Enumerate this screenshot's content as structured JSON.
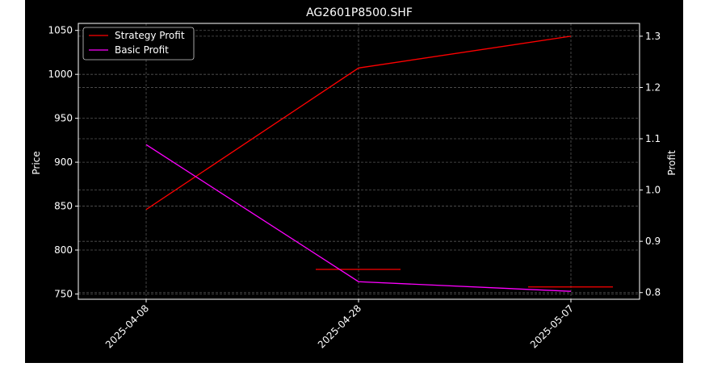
{
  "chart_data": {
    "type": "line",
    "title": "AG2601P8500.SHF",
    "ylabel": "Price",
    "y2label": "Profit",
    "x_ticks": [
      "2025-04-08",
      "2025-04-28",
      "2025-05-07"
    ],
    "ylim": [
      744,
      1058
    ],
    "y_ticks": [
      750,
      800,
      850,
      900,
      950,
      1000,
      1050
    ],
    "y2lim": [
      0.787,
      1.325
    ],
    "y2_ticks": [
      0.8,
      0.9,
      1.0,
      1.1,
      1.2,
      1.3
    ],
    "grid": true,
    "legend_position": "top-left",
    "series": [
      {
        "name": "Strategy Profit",
        "axis": "right",
        "color": "#ff0000",
        "x": [
          "2025-04-08",
          "2025-04-28",
          "2025-05-07"
        ],
        "values": [
          0.962,
          1.238,
          1.3
        ]
      },
      {
        "name": "Basic Profit",
        "axis": "left",
        "color": "#ff00ff",
        "x": [
          "2025-04-08",
          "2025-04-28",
          "2025-05-07"
        ],
        "values": [
          920,
          764,
          753
        ]
      }
    ],
    "horizontal_segments": [
      {
        "color": "#ff0000",
        "axis": "left",
        "value": 778,
        "x_from": "2025-04-28",
        "x_span_ticks": 0.8
      },
      {
        "color": "#ff0000",
        "axis": "left",
        "value": 758,
        "x_from": "2025-05-07",
        "x_span_ticks": 0.8
      }
    ]
  }
}
